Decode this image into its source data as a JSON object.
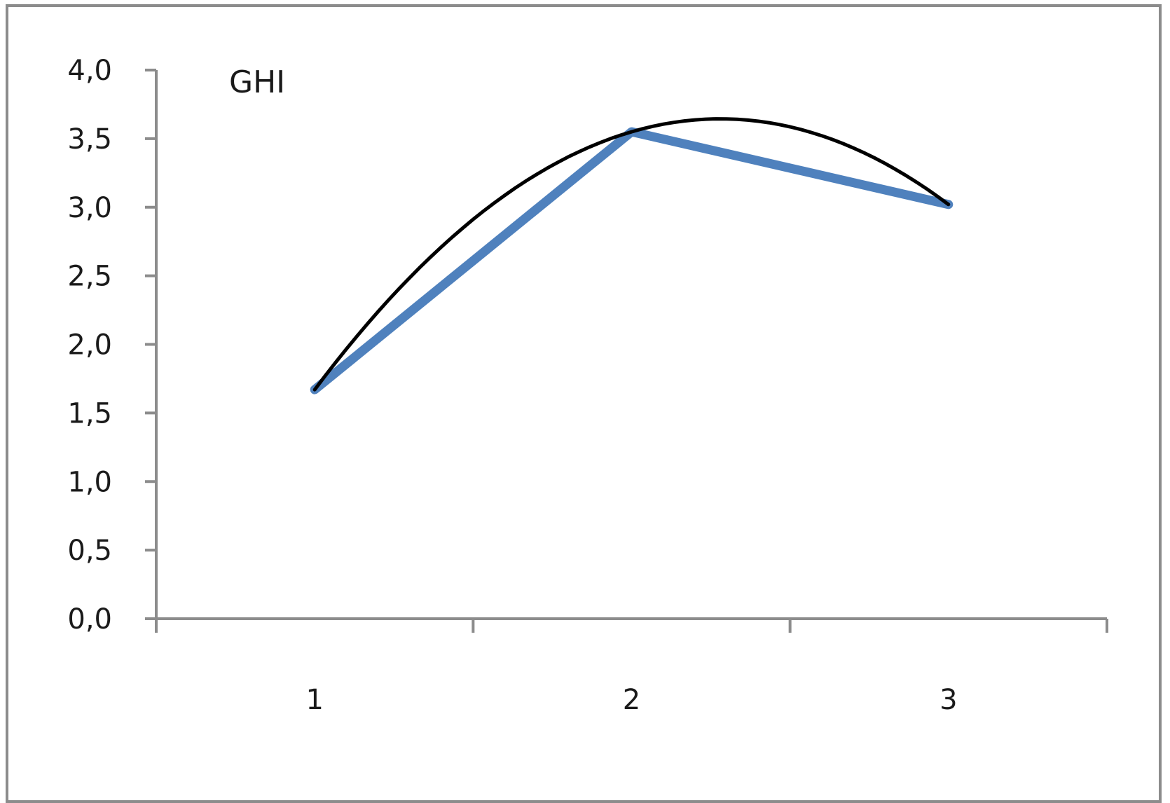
{
  "chart_data": {
    "type": "line",
    "title": "GHI",
    "xlabel": "",
    "ylabel": "",
    "categories": [
      "1",
      "2",
      "3"
    ],
    "ylim": [
      0,
      4.0
    ],
    "yticks": [
      "0,0",
      "0,5",
      "1,0",
      "1,5",
      "2,0",
      "2,5",
      "3,0",
      "3,5",
      "4,0"
    ],
    "grid": false,
    "legend": "none",
    "series": [
      {
        "style": "data",
        "color": "#4f81bd",
        "values": [
          1.67,
          3.55,
          3.02
        ]
      },
      {
        "style": "trendline",
        "color": "#000000",
        "values": [
          1.67,
          3.55,
          3.02
        ]
      }
    ]
  }
}
